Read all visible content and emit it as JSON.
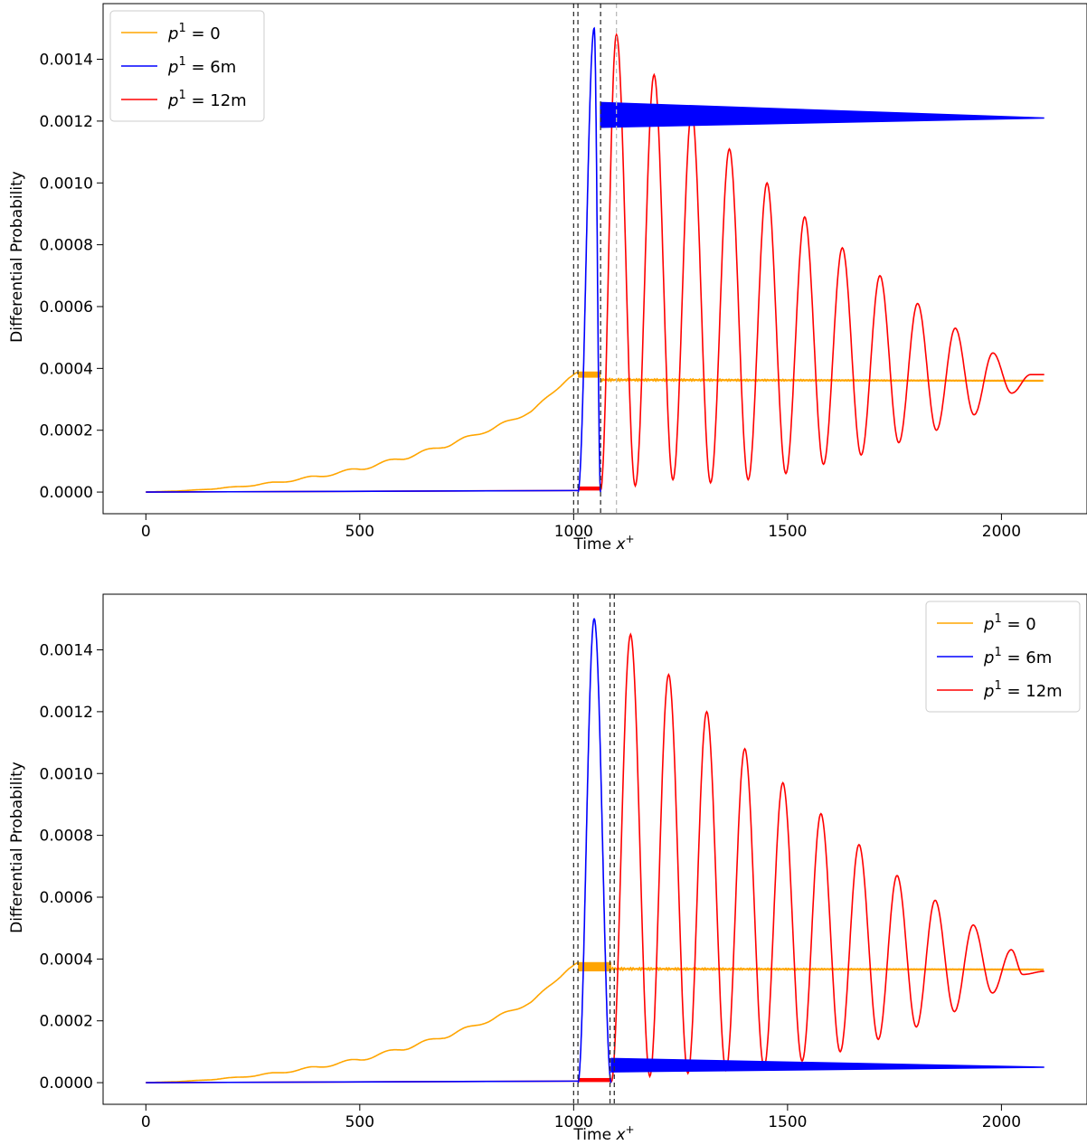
{
  "chart_data": [
    {
      "type": "line",
      "title": "",
      "xlabel": "Time",
      "xlabel_symbol": "x",
      "xlabel_sup": "+",
      "ylabel": "Differential Probability",
      "xlim": [
        -100,
        2200
      ],
      "ylim": [
        -7e-05,
        0.00158
      ],
      "x_ticks": [
        0,
        500,
        1000,
        1500,
        2000
      ],
      "y_ticks": [
        0.0,
        0.0002,
        0.0004,
        0.0006,
        0.0008,
        0.001,
        0.0012,
        0.0014
      ],
      "y_tick_labels": [
        "0.0000",
        "0.0002",
        "0.0004",
        "0.0006",
        "0.0008",
        "0.0010",
        "0.0012",
        "0.0014"
      ],
      "legend_position": "top-left",
      "grid": false,
      "vlines": [
        {
          "x": 1000,
          "color": "#333333",
          "style": "dashed"
        },
        {
          "x": 1010,
          "color": "#333333",
          "style": "dashed"
        },
        {
          "x": 1063,
          "color": "#333333",
          "style": "dashed"
        },
        {
          "x": 1100,
          "color": "#bbbbbb",
          "style": "dashed"
        }
      ],
      "series": [
        {
          "name": "p¹ = 0",
          "name_base": "p",
          "name_sup": "1",
          "name_rest": " = 0",
          "color": "#ffa500",
          "points": [
            [
              0,
              0
            ],
            [
              100,
              5e-06
            ],
            [
              200,
              1.5e-05
            ],
            [
              300,
              3e-05
            ],
            [
              400,
              5e-05
            ],
            [
              500,
              7.5e-05
            ],
            [
              600,
              0.00011
            ],
            [
              700,
              0.00015
            ],
            [
              800,
              0.0002
            ],
            [
              900,
              0.00026
            ],
            [
              990,
              0.00037
            ],
            [
              1010,
              0.00038
            ]
          ],
          "ripple": {
            "period": 90,
            "amplitude": 8e-06,
            "x_end": 1010
          },
          "band": {
            "x": [
              1010,
              1063
            ],
            "y": [
              0.00037,
              0.00039
            ]
          },
          "tail": {
            "x": [
              1063,
              2100
            ],
            "y_start": 0.000363,
            "y_end": 0.00036,
            "wobble": 3e-06
          }
        },
        {
          "name": "p¹ = 6m",
          "name_base": "p",
          "name_sup": "1",
          "name_rest": " = 6m",
          "color": "#0000ff",
          "baseline": {
            "x": [
              0,
              1010
            ],
            "y": [
              0,
              5e-06
            ]
          },
          "peak": {
            "x": [
              1010,
              1063
            ],
            "peak_x": 1048,
            "peak_y": 0.0015
          },
          "band": {
            "x": [
              1063,
              2100
            ],
            "y_start": [
              0.00118,
              0.00126
            ],
            "y_end": [
              0.00121,
              0.00121
            ]
          }
        },
        {
          "name": "p¹ = 12m",
          "name_base": "p",
          "name_sup": "1",
          "name_rest": " = 12m",
          "color": "#ff0000",
          "baseline": {
            "x": [
              0,
              1010
            ],
            "y": [
              0,
              5e-06
            ]
          },
          "flat_band": {
            "x": [
              1010,
              1063
            ],
            "y": [
              5e-06,
              1.8e-05
            ]
          },
          "oscillation": {
            "x_start": 1063,
            "x_end": 2100,
            "max_points": [
              [
                1100,
                0.00148
              ],
              [
                1188,
                0.00135
              ],
              [
                1276,
                0.00123
              ],
              [
                1364,
                0.00111
              ],
              [
                1452,
                0.001
              ],
              [
                1540,
                0.00089
              ],
              [
                1628,
                0.00079
              ],
              [
                1716,
                0.0007
              ],
              [
                1804,
                0.00061
              ],
              [
                1892,
                0.00053
              ],
              [
                1980,
                0.00045
              ],
              [
                2068,
                0.00038
              ]
            ],
            "min_points": [
              [
                1144,
                2e-05
              ],
              [
                1232,
                4e-05
              ],
              [
                1320,
                3e-05
              ],
              [
                1408,
                4e-05
              ],
              [
                1496,
                6e-05
              ],
              [
                1584,
                9e-05
              ],
              [
                1672,
                0.00012
              ],
              [
                1760,
                0.00016
              ],
              [
                1848,
                0.0002
              ],
              [
                1936,
                0.00025
              ],
              [
                2024,
                0.00032
              ],
              [
                2100,
                0.00038
              ]
            ]
          }
        }
      ]
    },
    {
      "type": "line",
      "title": "",
      "xlabel": "Time",
      "xlabel_symbol": "x",
      "xlabel_sup": "+",
      "ylabel": "Differential Probability",
      "xlim": [
        -100,
        2200
      ],
      "ylim": [
        -7e-05,
        0.00158
      ],
      "x_ticks": [
        0,
        500,
        1000,
        1500,
        2000
      ],
      "y_ticks": [
        0.0,
        0.0002,
        0.0004,
        0.0006,
        0.0008,
        0.001,
        0.0012,
        0.0014
      ],
      "y_tick_labels": [
        "0.0000",
        "0.0002",
        "0.0004",
        "0.0006",
        "0.0008",
        "0.0010",
        "0.0012",
        "0.0014"
      ],
      "legend_position": "top-right",
      "grid": false,
      "vlines": [
        {
          "x": 1000,
          "color": "#333333",
          "style": "dashed"
        },
        {
          "x": 1010,
          "color": "#333333",
          "style": "dashed"
        },
        {
          "x": 1085,
          "color": "#333333",
          "style": "dashed"
        },
        {
          "x": 1095,
          "color": "#333333",
          "style": "dashed"
        }
      ],
      "series": [
        {
          "name": "p¹ = 0",
          "name_base": "p",
          "name_sup": "1",
          "name_rest": " = 0",
          "color": "#ffa500",
          "points": [
            [
              0,
              0
            ],
            [
              100,
              5e-06
            ],
            [
              200,
              1.5e-05
            ],
            [
              300,
              3e-05
            ],
            [
              400,
              5e-05
            ],
            [
              500,
              7.5e-05
            ],
            [
              600,
              0.00011
            ],
            [
              700,
              0.00015
            ],
            [
              800,
              0.0002
            ],
            [
              900,
              0.00026
            ],
            [
              990,
              0.00037
            ],
            [
              1010,
              0.00038
            ]
          ],
          "ripple": {
            "period": 90,
            "amplitude": 8e-06,
            "x_end": 1010
          },
          "band": {
            "x": [
              1010,
              1088
            ],
            "y": [
              0.00036,
              0.00039
            ]
          },
          "tail": {
            "x": [
              1088,
              2100
            ],
            "y_start": 0.000368,
            "y_end": 0.000366,
            "wobble": 3e-06
          }
        },
        {
          "name": "p¹ = 6m",
          "name_base": "p",
          "name_sup": "1",
          "name_rest": " = 6m",
          "color": "#0000ff",
          "baseline": {
            "x": [
              0,
              1010
            ],
            "y": [
              0,
              5e-06
            ]
          },
          "peak": {
            "x": [
              1010,
              1088
            ],
            "peak_x": 1048,
            "peak_y": 0.0015
          },
          "band": {
            "x": [
              1088,
              2100
            ],
            "y_start": [
              3.5e-05,
              7.8e-05
            ],
            "y_end": [
              5e-05,
              5e-05
            ]
          }
        },
        {
          "name": "p¹ = 12m",
          "name_base": "p",
          "name_sup": "1",
          "name_rest": " = 12m",
          "color": "#ff0000",
          "baseline": {
            "x": [
              0,
              1010
            ],
            "y": [
              0,
              5e-06
            ]
          },
          "flat_band": {
            "x": [
              1010,
              1088
            ],
            "y": [
              2e-06,
              1.5e-05
            ]
          },
          "oscillation": {
            "x_start": 1088,
            "x_end": 2100,
            "max_points": [
              [
                1133,
                0.00145
              ],
              [
                1222,
                0.00132
              ],
              [
                1311,
                0.0012
              ],
              [
                1400,
                0.00108
              ],
              [
                1489,
                0.00097
              ],
              [
                1578,
                0.00087
              ],
              [
                1667,
                0.00077
              ],
              [
                1756,
                0.00067
              ],
              [
                1845,
                0.00059
              ],
              [
                1934,
                0.00051
              ],
              [
                2023,
                0.00043
              ]
            ],
            "min_points": [
              [
                1178,
                2e-05
              ],
              [
                1267,
                3e-05
              ],
              [
                1356,
                4e-05
              ],
              [
                1445,
                5e-05
              ],
              [
                1534,
                7e-05
              ],
              [
                1623,
                0.0001
              ],
              [
                1712,
                0.00014
              ],
              [
                1801,
                0.00018
              ],
              [
                1890,
                0.00023
              ],
              [
                1979,
                0.00029
              ],
              [
                2050,
                0.00035
              ],
              [
                2100,
                0.00036
              ]
            ]
          }
        }
      ]
    }
  ]
}
